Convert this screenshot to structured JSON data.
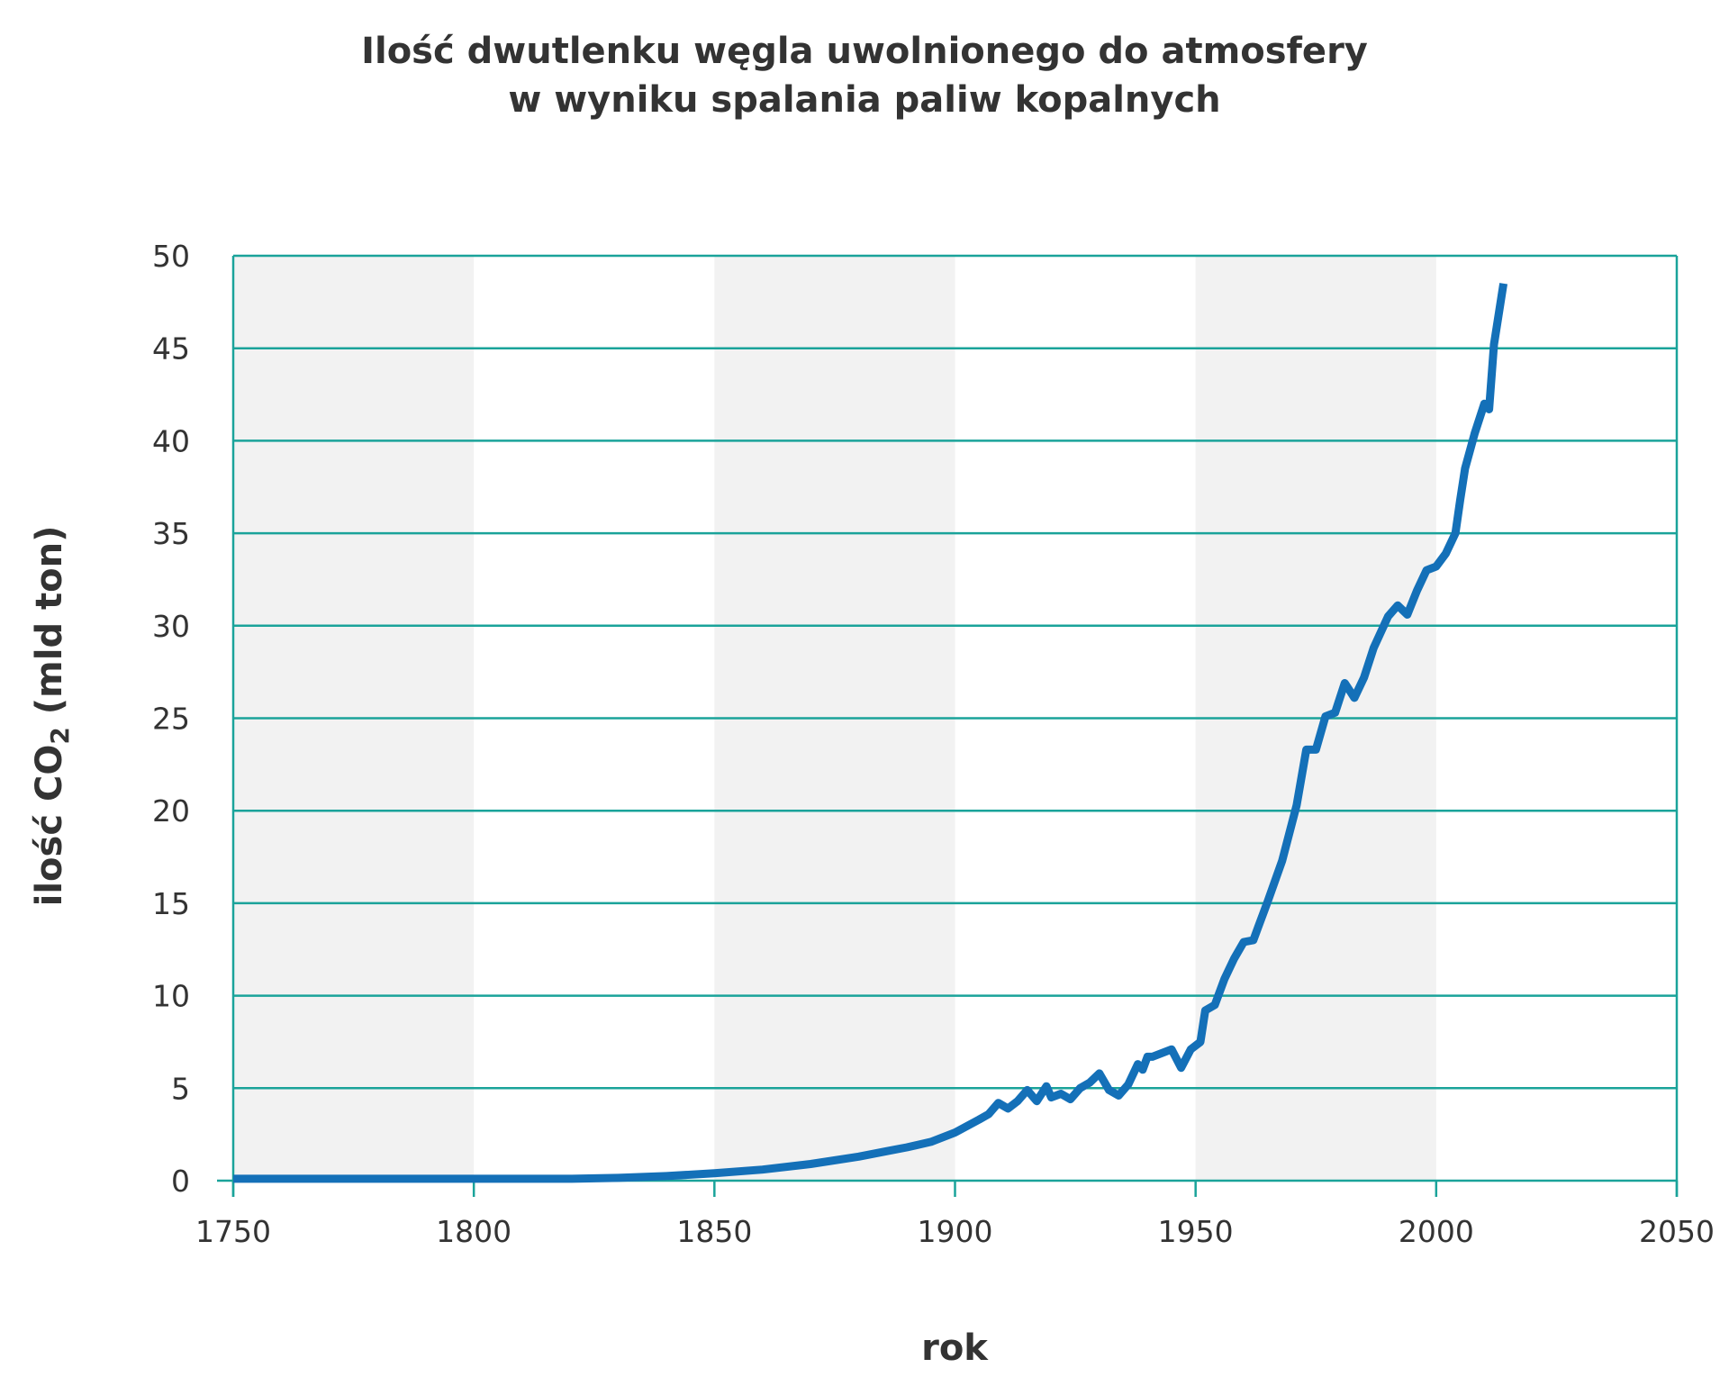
{
  "chart_data": {
    "type": "line",
    "title_line1": "Ilość dwutlenku węgla uwolnionego do atmosfery",
    "title_line2": "w wyniku spalania paliw kopalnych",
    "xlabel": "rok",
    "ylabel_prefix": "ilość CO",
    "ylabel_sub": "2",
    "ylabel_suffix": " (mld ton)",
    "xlim": [
      1750,
      2050
    ],
    "ylim": [
      0,
      50
    ],
    "x_ticks": [
      1750,
      1800,
      1850,
      1900,
      1950,
      2000,
      2050
    ],
    "y_ticks": [
      0,
      5,
      10,
      15,
      20,
      25,
      30,
      35,
      40,
      45,
      50
    ],
    "shaded_bands": [
      [
        1750,
        1800
      ],
      [
        1850,
        1900
      ],
      [
        1950,
        2000
      ]
    ],
    "grid": "horizontal",
    "colors": {
      "line": "#1470b8",
      "grid": "#1aa39a",
      "band": "#f2f2f2",
      "text": "#333333"
    },
    "series": [
      {
        "x": [
          1750,
          1760,
          1770,
          1780,
          1790,
          1800,
          1810,
          1820,
          1830,
          1840,
          1850,
          1860,
          1870,
          1880,
          1886,
          1890,
          1895,
          1900,
          1905,
          1907,
          1909,
          1911,
          1913,
          1915,
          1917,
          1919,
          1920,
          1922,
          1924,
          1926,
          1928,
          1930,
          1932,
          1934,
          1936,
          1938,
          1939,
          1940,
          1941,
          1943,
          1945,
          1947,
          1949,
          1951,
          1952,
          1954,
          1956,
          1958,
          1960,
          1962,
          1963,
          1965,
          1968,
          1971,
          1973,
          1975,
          1977,
          1979,
          1981,
          1982,
          1983,
          1985,
          1987,
          1990,
          1992,
          1994,
          1996,
          1998,
          2000,
          2002,
          2004,
          2005,
          2006,
          2008,
          2010,
          2011,
          2012,
          2014
        ],
        "y": [
          0.1,
          0.1,
          0.1,
          0.1,
          0.1,
          0.1,
          0.1,
          0.1,
          0.15,
          0.25,
          0.4,
          0.6,
          0.9,
          1.3,
          1.6,
          1.8,
          2.1,
          2.6,
          3.3,
          3.6,
          4.2,
          3.9,
          4.3,
          4.9,
          4.3,
          5.1,
          4.5,
          4.7,
          4.4,
          5.0,
          5.3,
          5.8,
          4.9,
          4.6,
          5.2,
          6.3,
          6.0,
          6.7,
          6.7,
          6.9,
          7.1,
          6.1,
          7.1,
          7.5,
          9.2,
          9.5,
          10.9,
          12.0,
          12.9,
          13.0,
          13.7,
          15.1,
          17.3,
          20.3,
          23.3,
          23.3,
          25.1,
          25.3,
          26.9,
          26.5,
          26.1,
          27.2,
          28.8,
          30.5,
          31.1,
          30.6,
          31.9,
          33.0,
          33.2,
          33.9,
          35.0,
          36.8,
          38.5,
          40.4,
          42.0,
          41.7,
          45.2,
          48.5
        ]
      }
    ]
  }
}
